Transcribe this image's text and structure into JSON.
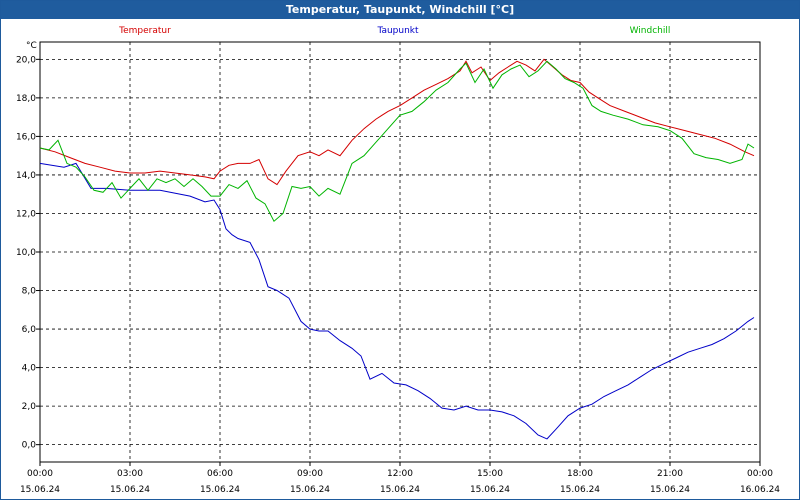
{
  "window": {
    "title": "Temperatur, Taupunkt, Windchill [°C]"
  },
  "chart_data": {
    "type": "line",
    "title": "Temperatur, Taupunkt, Windchill [°C]",
    "ylabel": "°C",
    "ylim": [
      -0.9,
      20.9
    ],
    "xlim": [
      0,
      24
    ],
    "yticks": [
      0,
      2,
      4,
      6,
      8,
      10,
      12,
      14,
      16,
      18,
      20
    ],
    "ytick_labels": [
      "0,0",
      "2,0",
      "4,0",
      "6,0",
      "8,0",
      "10,0",
      "12,0",
      "14,0",
      "16,0",
      "18,0",
      "20,0"
    ],
    "xticks": [
      0,
      3,
      6,
      9,
      12,
      15,
      18,
      21,
      24
    ],
    "xtick_time_labels": [
      "00:00",
      "03:00",
      "06:00",
      "09:00",
      "12:00",
      "15:00",
      "18:00",
      "21:00",
      "00:00"
    ],
    "xtick_date_labels": [
      "15.06.24",
      "15.06.24",
      "15.06.24",
      "15.06.24",
      "15.06.24",
      "15.06.24",
      "15.06.24",
      "15.06.24",
      "16.06.24"
    ],
    "legend_position": "top",
    "grid": true,
    "series": [
      {
        "name": "Temperatur",
        "color": "#d40000",
        "x": [
          0,
          0.5,
          1,
          1.5,
          2,
          2.5,
          3,
          3.5,
          4,
          4.5,
          5,
          5.5,
          5.8,
          6,
          6.3,
          6.6,
          7,
          7.3,
          7.6,
          7.9,
          8.2,
          8.6,
          9,
          9.3,
          9.6,
          10,
          10.4,
          10.8,
          11.2,
          11.6,
          12,
          12.4,
          12.8,
          13.2,
          13.6,
          14,
          14.2,
          14.4,
          14.7,
          15,
          15.3,
          15.6,
          15.9,
          16.2,
          16.5,
          16.8,
          17.1,
          17.4,
          17.7,
          18,
          18.3,
          18.6,
          19,
          19.5,
          20,
          20.5,
          21,
          21.5,
          22,
          22.5,
          23,
          23.5,
          23.8
        ],
        "values": [
          15.4,
          15.2,
          14.9,
          14.6,
          14.4,
          14.2,
          14.1,
          14.1,
          14.2,
          14.1,
          14.0,
          13.9,
          13.8,
          14.2,
          14.5,
          14.6,
          14.6,
          14.8,
          13.8,
          13.5,
          14.2,
          15.0,
          15.2,
          15.0,
          15.3,
          15.0,
          15.8,
          16.4,
          16.9,
          17.3,
          17.6,
          18.0,
          18.4,
          18.7,
          19.0,
          19.4,
          19.9,
          19.3,
          19.6,
          18.9,
          19.3,
          19.6,
          19.9,
          19.7,
          19.4,
          20.0,
          19.6,
          19.2,
          18.9,
          18.8,
          18.3,
          18.0,
          17.6,
          17.3,
          17.0,
          16.7,
          16.5,
          16.3,
          16.1,
          15.9,
          15.6,
          15.2,
          15.0
        ]
      },
      {
        "name": "Taupunkt",
        "color": "#0000c8",
        "x": [
          0,
          0.8,
          1.2,
          1.7,
          2.2,
          3,
          3.5,
          4,
          5,
          5.5,
          5.8,
          6,
          6.2,
          6.4,
          6.6,
          7,
          7.3,
          7.6,
          7.9,
          8.3,
          8.7,
          9,
          9.3,
          9.6,
          10,
          10.4,
          10.7,
          11,
          11.4,
          11.8,
          12.2,
          12.6,
          13,
          13.4,
          13.8,
          14.2,
          14.6,
          15,
          15.4,
          15.8,
          16.2,
          16.6,
          16.9,
          17.2,
          17.6,
          18,
          18.4,
          18.8,
          19.2,
          19.6,
          20,
          20.4,
          20.8,
          21.2,
          21.6,
          22,
          22.4,
          22.8,
          23.2,
          23.6,
          23.8
        ],
        "values": [
          14.6,
          14.4,
          14.6,
          13.3,
          13.3,
          13.2,
          13.2,
          13.2,
          12.9,
          12.6,
          12.7,
          12.2,
          11.2,
          10.9,
          10.7,
          10.5,
          9.6,
          8.2,
          8.0,
          7.6,
          6.4,
          6.0,
          5.9,
          5.9,
          5.4,
          5.0,
          4.6,
          3.4,
          3.7,
          3.2,
          3.1,
          2.8,
          2.4,
          1.9,
          1.8,
          2.0,
          1.8,
          1.8,
          1.7,
          1.5,
          1.1,
          0.5,
          0.3,
          0.8,
          1.5,
          1.9,
          2.1,
          2.5,
          2.8,
          3.1,
          3.5,
          3.9,
          4.2,
          4.5,
          4.8,
          5.0,
          5.2,
          5.5,
          5.9,
          6.4,
          6.6
        ]
      },
      {
        "name": "Windchill",
        "color": "#00b400",
        "x": [
          0,
          0.3,
          0.6,
          0.9,
          1.2,
          1.5,
          1.8,
          2.1,
          2.4,
          2.7,
          3,
          3.3,
          3.6,
          3.9,
          4.2,
          4.5,
          4.8,
          5.1,
          5.4,
          5.7,
          6,
          6.3,
          6.6,
          6.9,
          7.2,
          7.5,
          7.8,
          8.1,
          8.4,
          8.7,
          9,
          9.3,
          9.6,
          10,
          10.4,
          10.8,
          11.2,
          11.6,
          12,
          12.4,
          12.8,
          13.2,
          13.6,
          14,
          14.2,
          14.5,
          14.8,
          15.1,
          15.4,
          15.7,
          16,
          16.3,
          16.6,
          16.9,
          17.2,
          17.5,
          17.8,
          18.1,
          18.4,
          18.7,
          19.1,
          19.6,
          20.1,
          20.6,
          21,
          21.4,
          21.8,
          22.2,
          22.6,
          23,
          23.4,
          23.6,
          23.8
        ],
        "values": [
          15.4,
          15.3,
          15.8,
          14.6,
          14.4,
          13.9,
          13.2,
          13.1,
          13.6,
          12.8,
          13.3,
          13.8,
          13.2,
          13.8,
          13.6,
          13.8,
          13.4,
          13.8,
          13.4,
          12.9,
          12.9,
          13.5,
          13.3,
          13.7,
          12.8,
          12.5,
          11.6,
          12.0,
          13.4,
          13.3,
          13.4,
          12.9,
          13.3,
          13.0,
          14.6,
          15.0,
          15.7,
          16.4,
          17.1,
          17.3,
          17.8,
          18.4,
          18.8,
          19.5,
          19.8,
          18.8,
          19.5,
          18.5,
          19.2,
          19.5,
          19.7,
          19.1,
          19.4,
          19.9,
          19.5,
          19.0,
          18.8,
          18.5,
          17.6,
          17.3,
          17.1,
          16.9,
          16.6,
          16.5,
          16.3,
          15.9,
          15.1,
          14.9,
          14.8,
          14.6,
          14.8,
          15.6,
          15.4
        ]
      }
    ]
  }
}
